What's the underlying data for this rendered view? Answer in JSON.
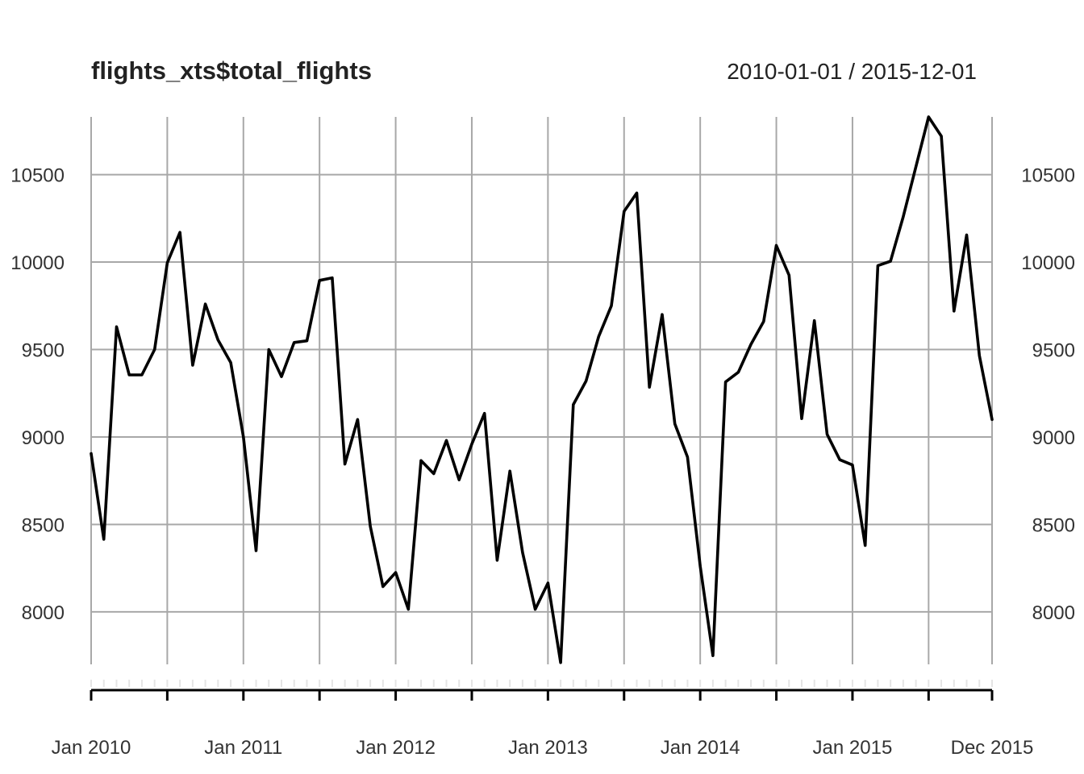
{
  "chart_data": {
    "type": "line",
    "title": "flights_xts$total_flights",
    "date_range_label": "2010-01-01 / 2015-12-01",
    "xlabel": "",
    "ylabel": "",
    "x_start": "2010-01",
    "x_end": "2015-12",
    "ylim": [
      7700,
      10830
    ],
    "y_ticks": [
      8000,
      8500,
      9000,
      9500,
      10000,
      10500
    ],
    "x_tick_labels": [
      {
        "label": "Jan 2010",
        "date": "2010-01"
      },
      {
        "label": "Jan 2011",
        "date": "2011-01"
      },
      {
        "label": "Jan 2012",
        "date": "2012-01"
      },
      {
        "label": "Jan 2013",
        "date": "2013-01"
      },
      {
        "label": "Jan 2014",
        "date": "2014-01"
      },
      {
        "label": "Jan 2015",
        "date": "2015-01"
      },
      {
        "label": "Dec 2015",
        "date": "2015-12"
      }
    ],
    "minor_grid_dates": [
      "2010-07",
      "2011-07",
      "2012-07",
      "2013-07",
      "2014-07",
      "2015-07"
    ],
    "grid": true,
    "series": [
      {
        "values": [
          8905,
          8415,
          9630,
          9355,
          9355,
          9500,
          9995,
          10170,
          9410,
          9760,
          9555,
          9425,
          9000,
          8350,
          9500,
          9345,
          9540,
          9550,
          9895,
          9910,
          8845,
          9100,
          8490,
          8145,
          8225,
          8015,
          8865,
          8790,
          8980,
          8755,
          8960,
          9135,
          8295,
          8805,
          8340,
          8015,
          8165,
          7710,
          9185,
          9320,
          9575,
          9750,
          10290,
          10395,
          9285,
          9700,
          9075,
          8885,
          8260,
          7750,
          9315,
          9370,
          9530,
          9660,
          10095,
          9925,
          9105,
          9665,
          9015,
          8870,
          8840,
          8380,
          9980,
          10005,
          10260,
          10545,
          10830,
          10720,
          9720,
          10155,
          9465,
          9100
        ]
      }
    ]
  }
}
